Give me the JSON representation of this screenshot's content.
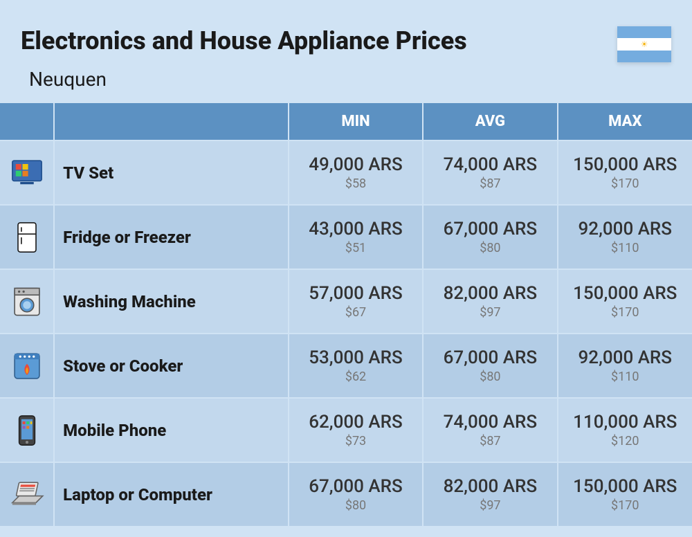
{
  "title": "Electronics and House Appliance Prices",
  "location": "Neuquen",
  "flag": {
    "stripe_color": "#74acdf",
    "center_color": "#ffffff",
    "sun_color": "#f6b40e"
  },
  "columns": {
    "min": "MIN",
    "avg": "AVG",
    "max": "MAX"
  },
  "colors": {
    "page_bg": "#d0e3f4",
    "header_bg": "#5c91c2",
    "header_text": "#ffffff",
    "row_odd": "#c2d8ed",
    "row_even": "#b3cde6",
    "primary_text": "#333333",
    "secondary_text": "#777777",
    "name_text": "#1a1a1a"
  },
  "rows": [
    {
      "icon": "tv",
      "name": "TV Set",
      "min": {
        "primary": "49,000 ARS",
        "secondary": "$58"
      },
      "avg": {
        "primary": "74,000 ARS",
        "secondary": "$87"
      },
      "max": {
        "primary": "150,000 ARS",
        "secondary": "$170"
      }
    },
    {
      "icon": "fridge",
      "name": "Fridge or Freezer",
      "min": {
        "primary": "43,000 ARS",
        "secondary": "$51"
      },
      "avg": {
        "primary": "67,000 ARS",
        "secondary": "$80"
      },
      "max": {
        "primary": "92,000 ARS",
        "secondary": "$110"
      }
    },
    {
      "icon": "washing-machine",
      "name": "Washing Machine",
      "min": {
        "primary": "57,000 ARS",
        "secondary": "$67"
      },
      "avg": {
        "primary": "82,000 ARS",
        "secondary": "$97"
      },
      "max": {
        "primary": "150,000 ARS",
        "secondary": "$170"
      }
    },
    {
      "icon": "stove",
      "name": "Stove or Cooker",
      "min": {
        "primary": "53,000 ARS",
        "secondary": "$62"
      },
      "avg": {
        "primary": "67,000 ARS",
        "secondary": "$80"
      },
      "max": {
        "primary": "92,000 ARS",
        "secondary": "$110"
      }
    },
    {
      "icon": "mobile-phone",
      "name": "Mobile Phone",
      "min": {
        "primary": "62,000 ARS",
        "secondary": "$73"
      },
      "avg": {
        "primary": "74,000 ARS",
        "secondary": "$87"
      },
      "max": {
        "primary": "110,000 ARS",
        "secondary": "$120"
      }
    },
    {
      "icon": "laptop",
      "name": "Laptop or Computer",
      "min": {
        "primary": "67,000 ARS",
        "secondary": "$80"
      },
      "avg": {
        "primary": "82,000 ARS",
        "secondary": "$97"
      },
      "max": {
        "primary": "150,000 ARS",
        "secondary": "$170"
      }
    }
  ]
}
